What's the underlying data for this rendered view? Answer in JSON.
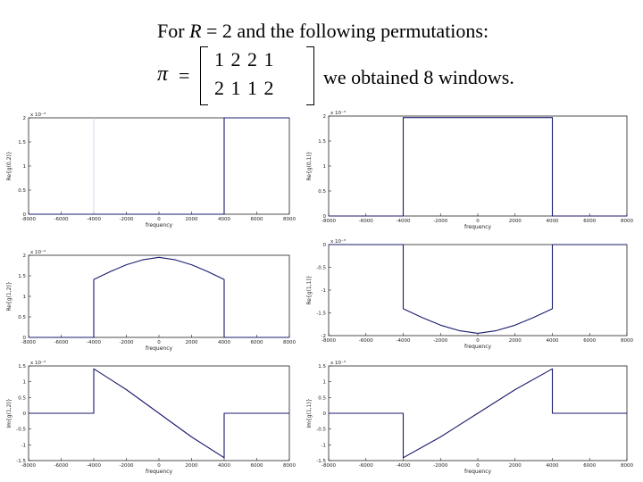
{
  "slide": {
    "title_prefix": "For ",
    "title_var": "R",
    "title_suffix": " = 2 and the following permutations:",
    "pi_symbol": "π",
    "equals": "=",
    "matrix_row1": "1 2 2 1",
    "matrix_row2": "2 1 1 2",
    "result_text": "we obtained 8 windows."
  },
  "chart_data": [
    {
      "type": "line",
      "exponent_label": "x 10⁻³",
      "xlabel": "frequency",
      "ylabel": "Re{g(0,2)}",
      "xlim": [
        -8000,
        8000
      ],
      "ylim": [
        0,
        2
      ],
      "xticks": [
        "-8000",
        "-6000",
        "-4000",
        "-2000",
        "0",
        "2000",
        "4000",
        "6000",
        "8000"
      ],
      "yticks": [
        "0",
        "0.5",
        "1",
        "1.5",
        "2"
      ],
      "series": [
        {
          "x": [
            -8000,
            -4000,
            -4000,
            4000,
            4000,
            8000
          ],
          "y": [
            0,
            0,
            0,
            0,
            2,
            2
          ]
        }
      ],
      "vlines": [
        {
          "x": -4000,
          "y0": 0,
          "y1": 2,
          "style": "faint"
        }
      ]
    },
    {
      "type": "line",
      "exponent_label": "x 10⁻³",
      "xlabel": "frequency",
      "ylabel": "Re{g(0,1)}",
      "xlim": [
        -8000,
        8000
      ],
      "ylim": [
        0,
        2
      ],
      "xticks": [
        "-8000",
        "-6000",
        "-4000",
        "-2000",
        "0",
        "2000",
        "4000",
        "6000",
        "8000"
      ],
      "yticks": [
        "0",
        "0.5",
        "1",
        "1.5",
        "2"
      ],
      "series": [
        {
          "x": [
            -8000,
            -4000,
            -4000,
            4000,
            4000,
            8000
          ],
          "y": [
            0,
            0,
            1.97,
            1.97,
            0,
            0
          ]
        }
      ]
    },
    {
      "type": "line",
      "exponent_label": "x 10⁻³",
      "xlabel": "frequency",
      "ylabel": "Re{g(1,2)}",
      "xlim": [
        -8000,
        8000
      ],
      "ylim": [
        0,
        2
      ],
      "xticks": [
        "-8000",
        "-6000",
        "-4000",
        "-2000",
        "0",
        "2000",
        "4000",
        "6000",
        "8000"
      ],
      "yticks": [
        "0",
        "0.5",
        "1",
        "1.5",
        "2"
      ],
      "series": [
        {
          "x": [
            -8000,
            -4000,
            -4000,
            -3000,
            -2000,
            -1000,
            0,
            1000,
            2000,
            3000,
            4000,
            4000,
            8000
          ],
          "y": [
            0,
            0,
            1.41,
            1.6,
            1.77,
            1.89,
            1.95,
            1.89,
            1.77,
            1.6,
            1.41,
            0,
            0
          ]
        }
      ]
    },
    {
      "type": "line",
      "exponent_label": "x 10⁻³",
      "xlabel": "frequency",
      "ylabel": "Re{g(1,1)}",
      "xlim": [
        -8000,
        8000
      ],
      "ylim": [
        -2,
        0
      ],
      "xticks": [
        "-8000",
        "-6000",
        "-4000",
        "-2000",
        "0",
        "2000",
        "4000",
        "6000",
        "8000"
      ],
      "yticks": [
        "-2",
        "-1.5",
        "-1",
        "-0.5",
        "0"
      ],
      "series": [
        {
          "x": [
            -8000,
            -4000,
            -4000,
            -3000,
            -2000,
            -1000,
            0,
            1000,
            2000,
            3000,
            4000,
            4000,
            8000
          ],
          "y": [
            0,
            0,
            -1.41,
            -1.6,
            -1.77,
            -1.89,
            -1.95,
            -1.89,
            -1.77,
            -1.6,
            -1.41,
            0,
            0
          ]
        }
      ],
      "vlines": [
        {
          "x": -4000,
          "y0": -1.41,
          "y1": 0,
          "style": "faint"
        }
      ]
    },
    {
      "type": "line",
      "exponent_label": "x 10⁻³",
      "xlabel": "frequency",
      "ylabel": "Im{g(1,2)}",
      "xlim": [
        -8000,
        8000
      ],
      "ylim": [
        -1.5,
        1.5
      ],
      "xticks": [
        "-8000",
        "-6000",
        "-4000",
        "-2000",
        "0",
        "2000",
        "4000",
        "6000",
        "8000"
      ],
      "yticks": [
        "-1.5",
        "-1",
        "-0.5",
        "0",
        "0.5",
        "1",
        "1.5"
      ],
      "series": [
        {
          "x": [
            -8000,
            -4000,
            -4000,
            -2000,
            0,
            2000,
            4000,
            4000,
            8000
          ],
          "y": [
            0,
            0,
            1.41,
            0.75,
            0,
            -0.75,
            -1.41,
            0,
            0
          ]
        }
      ]
    },
    {
      "type": "line",
      "exponent_label": "x 10⁻³",
      "xlabel": "frequency",
      "ylabel": "Im{g(1,1)}",
      "xlim": [
        -8000,
        8000
      ],
      "ylim": [
        -1.5,
        1.5
      ],
      "xticks": [
        "-8000",
        "-6000",
        "-4000",
        "-2000",
        "0",
        "2000",
        "4000",
        "6000",
        "8000"
      ],
      "yticks": [
        "-1.5",
        "-1",
        "-0.5",
        "0",
        "0.5",
        "1",
        "1.5"
      ],
      "series": [
        {
          "x": [
            -8000,
            -4000,
            -4000,
            -2000,
            0,
            2000,
            4000,
            4000,
            8000
          ],
          "y": [
            0,
            0,
            -1.41,
            -0.75,
            0,
            0.75,
            1.41,
            0,
            0
          ]
        }
      ],
      "vlines": [
        {
          "x": -4000,
          "y0": -1.41,
          "y1": 0,
          "style": "faint"
        }
      ]
    }
  ]
}
